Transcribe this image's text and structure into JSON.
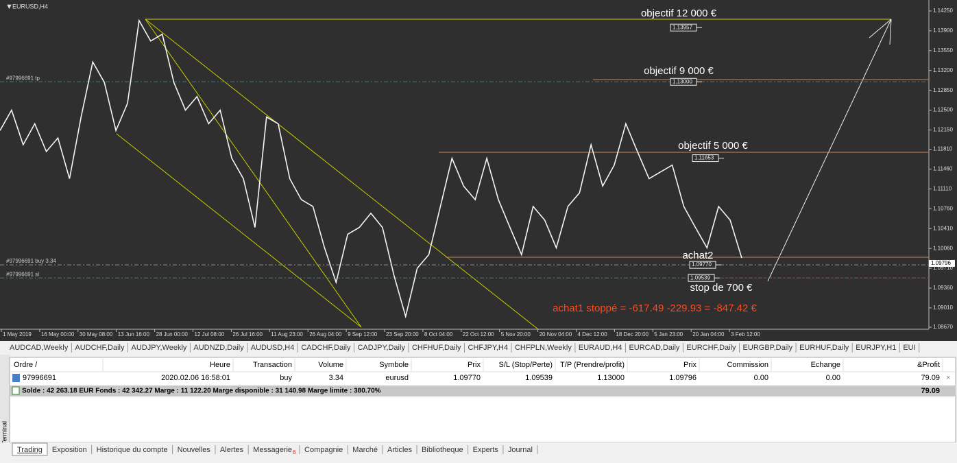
{
  "chart": {
    "symbol": "EURUSD,H4",
    "price_ticks": [
      {
        "value": 1.1425,
        "label": "1.14250"
      },
      {
        "value": 1.139,
        "label": "1.13900"
      },
      {
        "value": 1.1355,
        "label": "1.13550"
      },
      {
        "value": 1.132,
        "label": "1.13200"
      },
      {
        "value": 1.1285,
        "label": "1.12850"
      },
      {
        "value": 1.125,
        "label": "1.12500"
      },
      {
        "value": 1.1215,
        "label": "1.12150"
      },
      {
        "value": 1.1181,
        "label": "1.11810"
      },
      {
        "value": 1.1146,
        "label": "1.11460"
      },
      {
        "value": 1.1111,
        "label": "1.11110"
      },
      {
        "value": 1.1076,
        "label": "1.10760"
      },
      {
        "value": 1.1041,
        "label": "1.10410"
      },
      {
        "value": 1.1006,
        "label": "1.10060"
      },
      {
        "value": 1.0971,
        "label": "1.09710"
      },
      {
        "value": 1.0936,
        "label": "1.09360"
      },
      {
        "value": 1.0901,
        "label": "1.09010"
      },
      {
        "value": 1.0867,
        "label": "1.08670"
      }
    ],
    "time_labels": [
      "1 May 2019",
      "16 May 00:00",
      "30 May 08:00",
      "13 Jun 16:00",
      "28 Jun 00:00",
      "12 Jul 08:00",
      "26 Jul 16:00",
      "11 Aug 23:00",
      "26 Aug 04:00",
      "9 Sep 12:00",
      "23 Sep 20:00",
      "8 Oct 04:00",
      "22 Oct 12:00",
      "5 Nov 20:00",
      "20 Nov 04:00",
      "4 Dec 12:00",
      "18 Dec 20:00",
      "5 Jan 23:00",
      "20 Jan 04:00",
      "3 Feb 12:00"
    ],
    "price_path": [
      1.1214,
      1.125,
      1.1189,
      1.1226,
      1.1177,
      1.1201,
      1.1129,
      1.1238,
      1.1335,
      1.1299,
      1.1214,
      1.1262,
      1.1408,
      1.1372,
      1.1384,
      1.1299,
      1.125,
      1.1274,
      1.1226,
      1.125,
      1.1165,
      1.1129,
      1.1043,
      1.1238,
      1.1226,
      1.1129,
      1.1092,
      1.108,
      1.1007,
      1.0946,
      1.1031,
      1.1043,
      1.1068,
      1.1043,
      1.0958,
      1.0886,
      1.0971,
      1.0995,
      1.108,
      1.1165,
      1.1116,
      1.1092,
      1.1165,
      1.1092,
      1.1043,
      1.0995,
      1.108,
      1.1056,
      1.1007,
      1.108,
      1.1104,
      1.1189,
      1.1116,
      1.1153,
      1.1226,
      1.1177,
      1.1129,
      1.1141,
      1.1153,
      1.108,
      1.1043,
      1.1007,
      1.108,
      1.1056,
      1.0989
    ],
    "levels": [
      {
        "value": 1.13957,
        "label": "1.13957"
      },
      {
        "value": 1.13,
        "label": "1.13000"
      },
      {
        "value": 1.11653,
        "label": "1.11653"
      },
      {
        "value": 1.0977,
        "label": "1.09770"
      },
      {
        "value": 1.09539,
        "label": "1.09539"
      }
    ],
    "current_price": {
      "value": 1.09796,
      "label": "1.09796"
    },
    "order_labels": [
      "#97996691 tp",
      "#97996691 buy 3.34",
      "#97996691 sl"
    ],
    "annotations": [
      "objectif 12 000 €",
      "objectif 9 000 €",
      "objectif 5 000 €",
      "achat2",
      "stop de 700 €",
      "achat1 stoppé = -617.49 -229.93 = -847.42 €"
    ]
  },
  "symbol_tabs": [
    "AUDCAD,Weekly",
    "AUDCHF,Daily",
    "AUDJPY,Weekly",
    "AUDNZD,Daily",
    "AUDUSD,H4",
    "CADCHF,Daily",
    "CADJPY,Daily",
    "CHFHUF,Daily",
    "CHFJPY,H4",
    "CHFPLN,Weekly",
    "EURAUD,H4",
    "EURCAD,Daily",
    "EURCHF,Daily",
    "EURGBP,Daily",
    "EURHUF,Daily",
    "EURJPY,H1",
    "EUI"
  ],
  "table": {
    "columns": [
      "Ordre  /",
      "Heure",
      "Transaction",
      "Volume",
      "Symbole",
      "Prix",
      "S/L (Stop/Perte)",
      "T/P (Prendre/profit)",
      "Prix",
      "Commission",
      "Echange",
      "&Profit"
    ],
    "rows": [
      [
        "97996691",
        "2020.02.06 16:58:01",
        "buy",
        "3.34",
        "eurusd",
        "1.09770",
        "1.09539",
        "1.13000",
        "1.09796",
        "0.00",
        "0.00",
        "79.09"
      ]
    ],
    "summary": "Solde : 42 263.18 EUR  Fonds : 42 342.27  Marge : 11 122.20  Marge disponible : 31 140.98  Marge limite : 380.70%",
    "summary_profit": "79.09"
  },
  "side_label": "Terminal",
  "bottom_tabs": [
    "Trading",
    "Exposition",
    "Historique du compte",
    "Nouvelles",
    "Alertes",
    "Messagerie",
    "Compagnie",
    "Marché",
    "Articles",
    "Bibliotheque",
    "Experts",
    "Journal"
  ],
  "messagerie_badge": "6"
}
